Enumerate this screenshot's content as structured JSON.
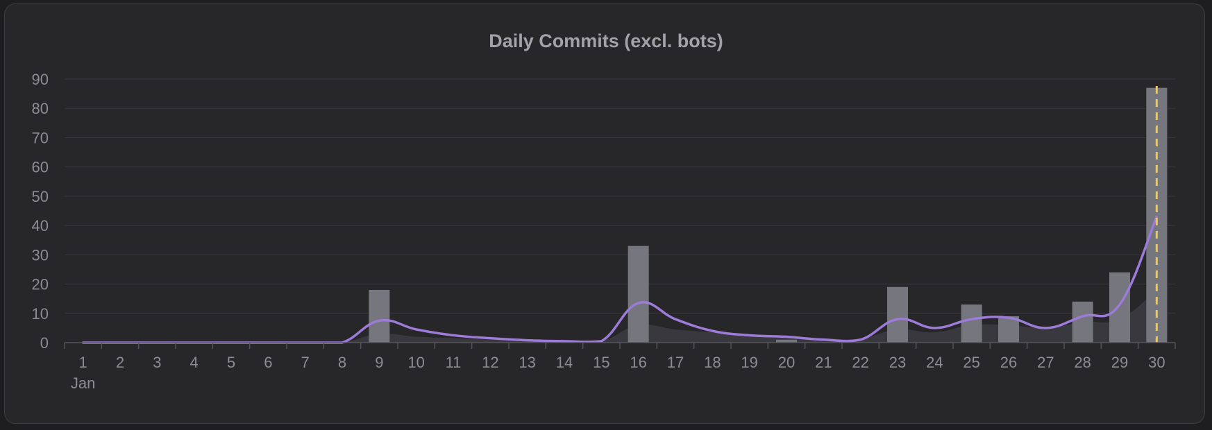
{
  "chart_data": {
    "type": "bar",
    "title": "Daily Commits (excl. bots)",
    "xlabel": "",
    "ylabel": "",
    "month_label": "Jan",
    "categories": [
      "1",
      "2",
      "3",
      "4",
      "5",
      "6",
      "7",
      "8",
      "9",
      "10",
      "11",
      "12",
      "13",
      "14",
      "15",
      "16",
      "17",
      "18",
      "19",
      "20",
      "21",
      "22",
      "23",
      "24",
      "25",
      "26",
      "27",
      "28",
      "29",
      "30"
    ],
    "ylim": [
      0,
      90
    ],
    "yticks": [
      0,
      10,
      20,
      30,
      40,
      50,
      60,
      70,
      80,
      90
    ],
    "grid": true,
    "series": [
      {
        "kind": "bar",
        "values": [
          0,
          0,
          0,
          0,
          0,
          0,
          0,
          0,
          18,
          0,
          0,
          0,
          0,
          0,
          0,
          33,
          0,
          0,
          0,
          1,
          0,
          0,
          19,
          0,
          13,
          9,
          0,
          14,
          24,
          87
        ]
      },
      {
        "kind": "area",
        "values": [
          0,
          0,
          0,
          0,
          0,
          0,
          0,
          0,
          3,
          2,
          1.5,
          1,
          0.8,
          0.6,
          0.5,
          6,
          4.5,
          3.5,
          2.5,
          2,
          1.5,
          1.3,
          4.5,
          3.5,
          6,
          6,
          5,
          7,
          8,
          18
        ]
      },
      {
        "kind": "line",
        "values": [
          0,
          0,
          0,
          0,
          0,
          0,
          0,
          0,
          7.5,
          4.5,
          2.5,
          1.5,
          0.8,
          0.5,
          0.5,
          13.5,
          8,
          4,
          2.5,
          2,
          1,
          1,
          8,
          5,
          8,
          8.5,
          5,
          9,
          13,
          43
        ]
      }
    ],
    "marker": {
      "day": "30",
      "style": "dashed"
    },
    "colors": {
      "bar": "#76767e",
      "area": "#3b3b40",
      "line": "#9d7bd8",
      "marker": "#f2c94c",
      "grid": "#37373c",
      "axis": "#55555a"
    }
  }
}
